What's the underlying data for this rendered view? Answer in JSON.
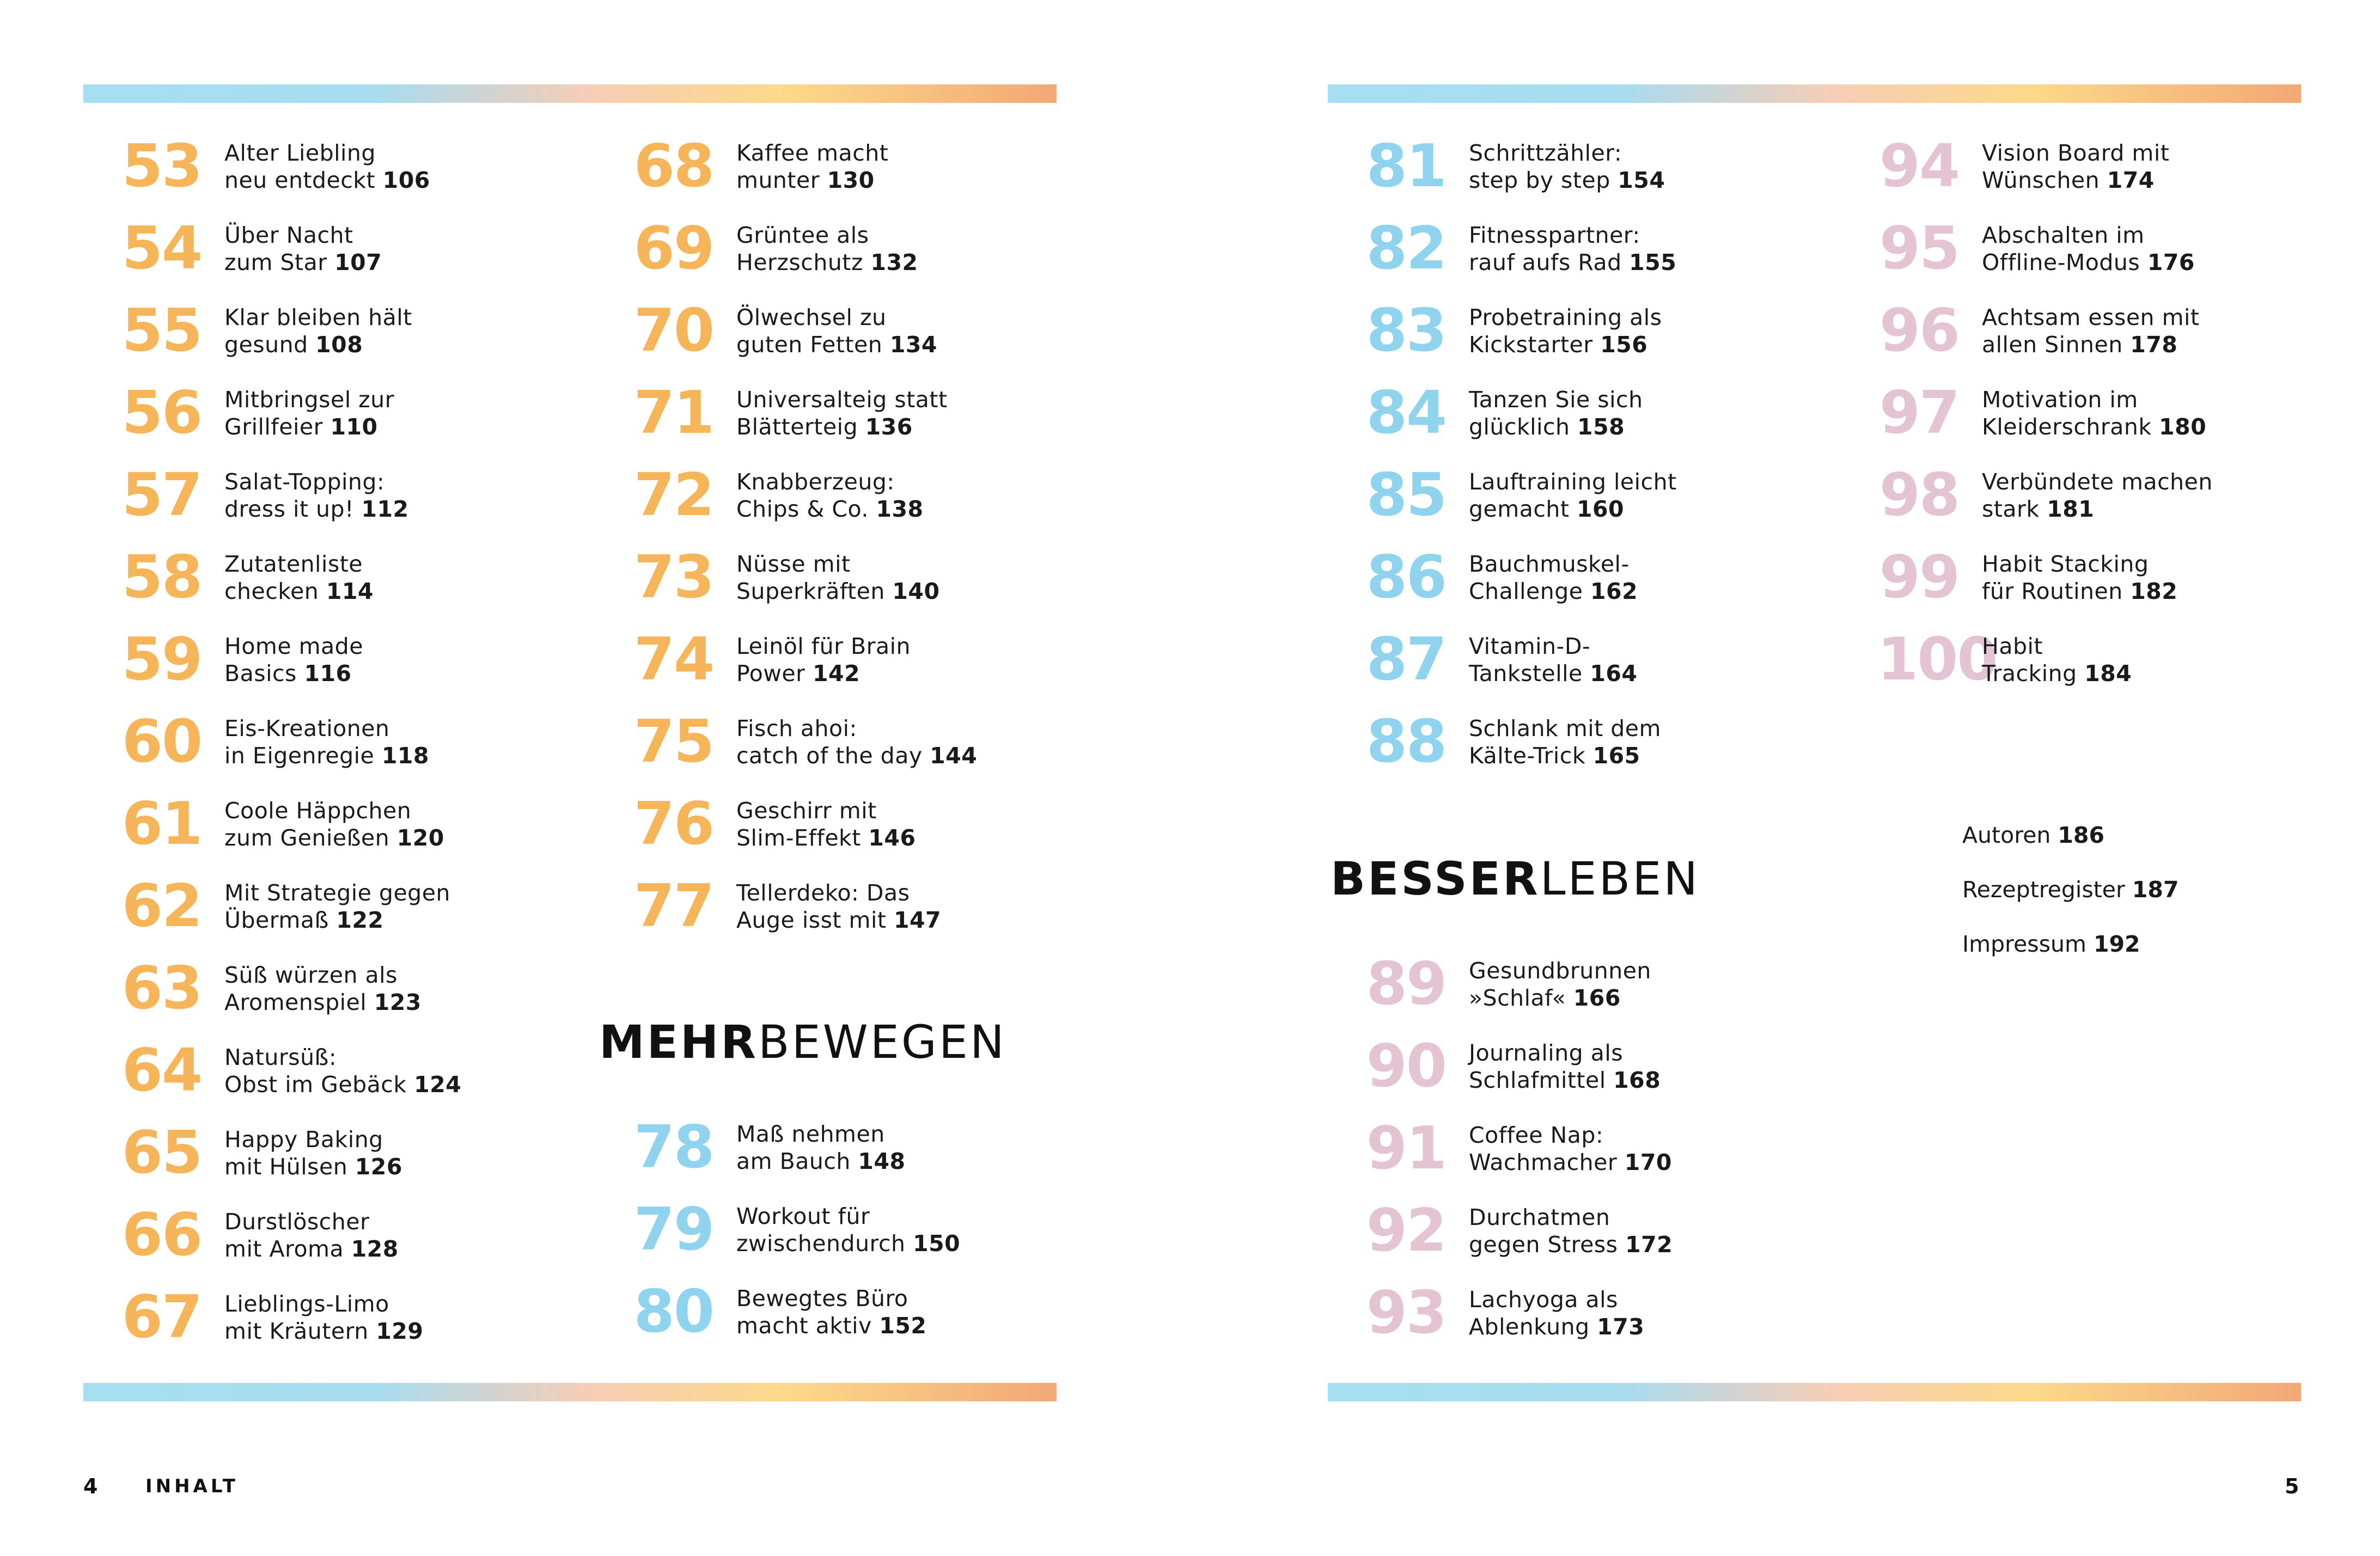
{
  "footer": {
    "left_page_number": "4",
    "left_section": "INHALT",
    "right_page_number": "5"
  },
  "headings": {
    "mehr_bewegen": {
      "bold": "MEHR",
      "thin": "BEWEGEN"
    },
    "besser_leben": {
      "bold": "BESSER",
      "thin": "LEBEN"
    }
  },
  "columns": {
    "col1": [
      {
        "num": "53",
        "line1": "Alter Liebling",
        "line2": "neu entdeckt",
        "page": "106"
      },
      {
        "num": "54",
        "line1": "Über Nacht",
        "line2": "zum Star",
        "page": "107"
      },
      {
        "num": "55",
        "line1": "Klar bleiben hält",
        "line2": "gesund",
        "page": "108"
      },
      {
        "num": "56",
        "line1": "Mitbringsel zur",
        "line2": "Grillfeier",
        "page": "110"
      },
      {
        "num": "57",
        "line1": "Salat-Topping:",
        "line2": "dress it up!",
        "page": "112"
      },
      {
        "num": "58",
        "line1": "Zutatenliste",
        "line2": "checken",
        "page": "114"
      },
      {
        "num": "59",
        "line1": "Home made",
        "line2": "Basics",
        "page": "116"
      },
      {
        "num": "60",
        "line1": "Eis-Kreationen",
        "line2": "in Eigenregie",
        "page": "118"
      },
      {
        "num": "61",
        "line1": "Coole Häppchen",
        "line2": "zum Genießen",
        "page": "120"
      },
      {
        "num": "62",
        "line1": "Mit Strategie gegen",
        "line2": "Übermaß",
        "page": "122"
      },
      {
        "num": "63",
        "line1": "Süß würzen als",
        "line2": "Aromenspiel",
        "page": "123"
      },
      {
        "num": "64",
        "line1": "Natursüß:",
        "line2": "Obst im Gebäck",
        "page": "124"
      },
      {
        "num": "65",
        "line1": "Happy Baking",
        "line2": "mit Hülsen",
        "page": "126"
      },
      {
        "num": "66",
        "line1": "Durstlöscher",
        "line2": "mit Aroma",
        "page": "128"
      },
      {
        "num": "67",
        "line1": "Lieblings-Limo",
        "line2": "mit Kräutern",
        "page": "129"
      }
    ],
    "col2": [
      {
        "num": "68",
        "line1": "Kaffee macht",
        "line2": "munter",
        "page": "130"
      },
      {
        "num": "69",
        "line1": "Grüntee als",
        "line2": "Herzschutz",
        "page": "132"
      },
      {
        "num": "70",
        "line1": "Ölwechsel zu",
        "line2": "guten Fetten",
        "page": "134"
      },
      {
        "num": "71",
        "line1": "Universalteig statt",
        "line2": "Blätterteig",
        "page": "136"
      },
      {
        "num": "72",
        "line1": "Knabberzeug:",
        "line2": "Chips & Co.",
        "page": "138"
      },
      {
        "num": "73",
        "line1": "Nüsse mit",
        "line2": "Superkräften",
        "page": "140"
      },
      {
        "num": "74",
        "line1": "Leinöl für Brain",
        "line2": "Power",
        "page": "142"
      },
      {
        "num": "75",
        "line1": "Fisch ahoi:",
        "line2": "catch of the day",
        "page": "144"
      },
      {
        "num": "76",
        "line1": "Geschirr mit",
        "line2": "Slim-Effekt",
        "page": "146"
      },
      {
        "num": "77",
        "line1": "Tellerdeko: Das",
        "line2": "Auge isst mit",
        "page": "147"
      }
    ],
    "col2b": [
      {
        "num": "78",
        "line1": "Maß nehmen",
        "line2": "am Bauch",
        "page": "148"
      },
      {
        "num": "79",
        "line1": "Workout für",
        "line2": "zwischendurch",
        "page": "150"
      },
      {
        "num": "80",
        "line1": "Bewegtes Büro",
        "line2": "macht aktiv",
        "page": "152"
      }
    ],
    "col3": [
      {
        "num": "81",
        "line1": "Schrittzähler:",
        "line2": "step by step",
        "page": "154"
      },
      {
        "num": "82",
        "line1": "Fitnesspartner:",
        "line2": "rauf aufs Rad",
        "page": "155"
      },
      {
        "num": "83",
        "line1": "Probetraining als",
        "line2": "Kickstarter",
        "page": "156"
      },
      {
        "num": "84",
        "line1": "Tanzen Sie sich",
        "line2": "glücklich",
        "page": "158"
      },
      {
        "num": "85",
        "line1": "Lauftraining leicht",
        "line2": "gemacht",
        "page": "160"
      },
      {
        "num": "86",
        "line1": "Bauchmuskel-",
        "line2": "Challenge",
        "page": "162"
      },
      {
        "num": "87",
        "line1": "Vitamin-D-",
        "line2": "Tankstelle",
        "page": "164"
      },
      {
        "num": "88",
        "line1": "Schlank mit dem",
        "line2": "Kälte-Trick",
        "page": "165"
      }
    ],
    "col3b": [
      {
        "num": "89",
        "line1": "Gesundbrunnen",
        "line2": "»Schlaf«",
        "page": "166"
      },
      {
        "num": "90",
        "line1": "Journaling als",
        "line2": "Schlafmittel",
        "page": "168"
      },
      {
        "num": "91",
        "line1": "Coffee Nap:",
        "line2": "Wachmacher",
        "page": "170"
      },
      {
        "num": "92",
        "line1": "Durchatmen",
        "line2": "gegen Stress",
        "page": "172"
      },
      {
        "num": "93",
        "line1": "Lachyoga als",
        "line2": "Ablenkung",
        "page": "173"
      }
    ],
    "col4": [
      {
        "num": "94",
        "line1": "Vision Board mit",
        "line2": "Wünschen",
        "page": "174"
      },
      {
        "num": "95",
        "line1": "Abschalten im",
        "line2": "Offline-Modus",
        "page": "176"
      },
      {
        "num": "96",
        "line1": "Achtsam essen mit",
        "line2": "allen Sinnen",
        "page": "178"
      },
      {
        "num": "97",
        "line1": "Motivation im",
        "line2": "Kleiderschrank",
        "page": "180"
      },
      {
        "num": "98",
        "line1": "Verbündete machen",
        "line2": "stark",
        "page": "181"
      },
      {
        "num": "99",
        "line1": "Habit Stacking",
        "line2": "für Routinen ",
        "page": "182"
      },
      {
        "num": "100",
        "line1": "Habit",
        "line2": "Tracking",
        "page": "184"
      }
    ]
  },
  "extras": [
    {
      "label": "Autoren",
      "page": "186"
    },
    {
      "label": "Rezeptregister",
      "page": "187"
    },
    {
      "label": "Impressum",
      "page": "192"
    }
  ],
  "colors": {
    "orange": "#f7b55a",
    "blue": "#8fd3ef",
    "pink": "#e4c3d2",
    "bar_gradient": [
      "#a6dff2",
      "#f6cdb6",
      "#fcd98a",
      "#f2a877"
    ]
  }
}
